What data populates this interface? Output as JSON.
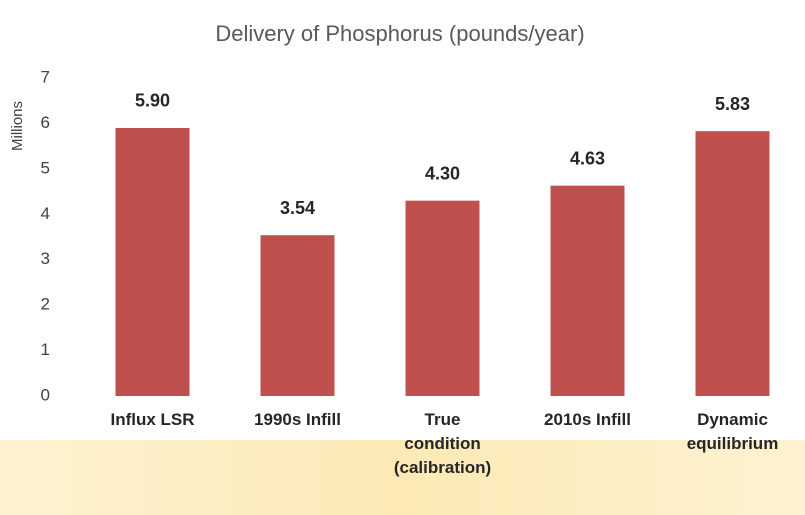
{
  "chart_data": {
    "type": "bar",
    "title": "Delivery of Phosphorus (pounds/year)",
    "y_axis_label": "Millions",
    "categories": [
      "Influx LSR",
      "1990s Infill",
      "True condition (calibration)",
      "2010s Infill",
      "Dynamic equilibrium"
    ],
    "values": [
      5.9,
      3.54,
      4.3,
      4.63,
      5.83
    ],
    "value_labels": [
      "5.90",
      "3.54",
      "4.30",
      "4.63",
      "5.83"
    ],
    "color": "#c0504d",
    "ylim": [
      0,
      7
    ],
    "yticks": [
      0,
      1,
      2,
      3,
      4,
      5,
      6,
      7
    ],
    "grid": false
  }
}
